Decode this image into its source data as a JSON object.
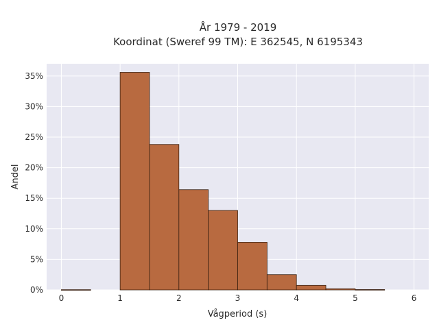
{
  "chart_data": {
    "type": "bar",
    "title_line1": "År 1979 - 2019",
    "title_line2": "Koordinat (Sweref 99 TM): E 362545, N 6195343",
    "xlabel": "Vågperiod (s)",
    "ylabel": "Andel",
    "xlim": [
      -0.25,
      6.25
    ],
    "ylim": [
      0,
      0.37
    ],
    "x_ticks": [
      0,
      1,
      2,
      3,
      4,
      5,
      6
    ],
    "y_ticks": [
      0,
      0.05,
      0.1,
      0.15,
      0.2,
      0.25,
      0.3,
      0.35
    ],
    "y_tick_labels": [
      "0%",
      "5%",
      "10%",
      "15%",
      "20%",
      "25%",
      "30%",
      "35%"
    ],
    "bin_width": 0.5,
    "bins": [
      {
        "x0": 0.0,
        "x1": 0.5,
        "value": 0.0004
      },
      {
        "x0": 0.5,
        "x1": 1.0,
        "value": 0.0
      },
      {
        "x0": 1.0,
        "x1": 1.5,
        "value": 0.356
      },
      {
        "x0": 1.5,
        "x1": 2.0,
        "value": 0.238
      },
      {
        "x0": 2.0,
        "x1": 2.5,
        "value": 0.164
      },
      {
        "x0": 2.5,
        "x1": 3.0,
        "value": 0.13
      },
      {
        "x0": 3.0,
        "x1": 3.5,
        "value": 0.078
      },
      {
        "x0": 3.5,
        "x1": 4.0,
        "value": 0.025
      },
      {
        "x0": 4.0,
        "x1": 4.5,
        "value": 0.0075
      },
      {
        "x0": 4.5,
        "x1": 5.0,
        "value": 0.002
      },
      {
        "x0": 5.0,
        "x1": 5.5,
        "value": 0.0006
      }
    ],
    "grid": true,
    "colors": {
      "bar_fill": "#b86a40",
      "bar_edge": "#3a2010",
      "plot_bg": "#e8e8f2",
      "grid": "#ffffff"
    }
  }
}
